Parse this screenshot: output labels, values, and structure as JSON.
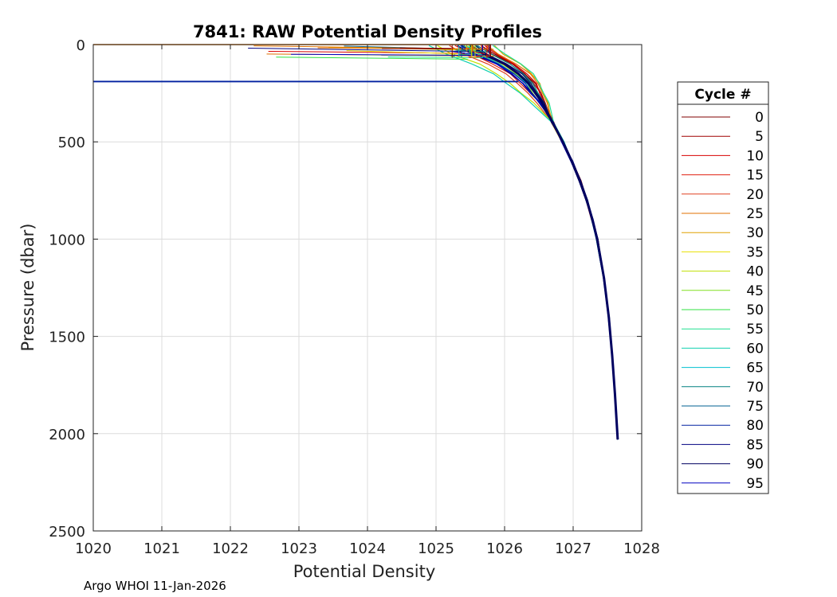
{
  "chart_data": {
    "type": "line",
    "title": "7841: RAW Potential Density Profiles",
    "xlabel": "Potential Density",
    "ylabel": "Pressure (dbar)",
    "xlim": [
      1020,
      1028
    ],
    "ylim": [
      0,
      2500
    ],
    "y_reversed": true,
    "x_ticks": [
      "1020",
      "1021",
      "1022",
      "1023",
      "1024",
      "1025",
      "1026",
      "1027",
      "1028"
    ],
    "y_ticks": [
      "0",
      "500",
      "1000",
      "1500",
      "2000",
      "2500"
    ],
    "grid": true,
    "legend": {
      "title": "Cycle #",
      "position": "right"
    },
    "footer": "Argo WHOI 11-Jan-2026",
    "series": [
      {
        "name": "0",
        "color": "#800000"
      },
      {
        "name": "5",
        "color": "#a00000"
      },
      {
        "name": "10",
        "color": "#d80000"
      },
      {
        "name": "15",
        "color": "#e02010"
      },
      {
        "name": "20",
        "color": "#e04020"
      },
      {
        "name": "25",
        "color": "#e07000"
      },
      {
        "name": "30",
        "color": "#e0a000"
      },
      {
        "name": "35",
        "color": "#e8e000"
      },
      {
        "name": "40",
        "color": "#c0e000"
      },
      {
        "name": "45",
        "color": "#80e020"
      },
      {
        "name": "50",
        "color": "#30e040"
      },
      {
        "name": "55",
        "color": "#20e090"
      },
      {
        "name": "60",
        "color": "#10d0b0"
      },
      {
        "name": "65",
        "color": "#00c0d0"
      },
      {
        "name": "70",
        "color": "#008080"
      },
      {
        "name": "75",
        "color": "#006090"
      },
      {
        "name": "80",
        "color": "#0020a0"
      },
      {
        "name": "85",
        "color": "#000080"
      },
      {
        "name": "90",
        "color": "#000060"
      },
      {
        "name": "95",
        "color": "#0000c0"
      }
    ],
    "profile": {
      "pressure": [
        5,
        50,
        100,
        150,
        200,
        250,
        300,
        400,
        500,
        600,
        700,
        800,
        900,
        1000,
        1200,
        1400,
        1600,
        1800,
        2030
      ],
      "density": [
        1025.5,
        1025.7,
        1026.0,
        1026.2,
        1026.35,
        1026.45,
        1026.55,
        1026.7,
        1026.85,
        1026.98,
        1027.1,
        1027.2,
        1027.28,
        1027.35,
        1027.45,
        1027.52,
        1027.57,
        1027.61,
        1027.65
      ]
    },
    "surface_spike": {
      "pressure": 190,
      "density": [
        1020,
        1026.2
      ]
    }
  }
}
